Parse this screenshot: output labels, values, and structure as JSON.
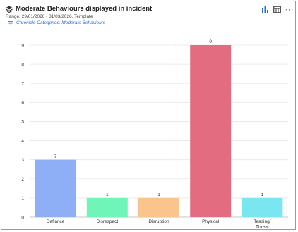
{
  "header": {
    "title": "Moderate Behaviours displayed in incident",
    "range": "Range: 29/01/2026 - 31/03/2026, Template",
    "filter": "Chronicle Categories: Moderate Behaviours"
  },
  "toolbar": {
    "more_label": "···"
  },
  "icons": {
    "title": "layers-icon",
    "filter": "filter-icon",
    "chart": "bar-chart-icon",
    "table": "table-icon"
  },
  "colors": {
    "toolbar_accent": "#2d6fd1",
    "filter_text": "#2a6ad4"
  },
  "chart_data": {
    "type": "bar",
    "categories": [
      "Defiance",
      "Disrespect",
      "Disruption",
      "Physical",
      "Teasing/ Threat"
    ],
    "category_lines": [
      [
        "Defiance"
      ],
      [
        "Disrespect"
      ],
      [
        "Disruption"
      ],
      [
        "Physical"
      ],
      [
        "Teasing/",
        "Threat"
      ]
    ],
    "values": [
      3,
      1,
      1,
      9,
      1
    ],
    "colors": [
      "#8eaef5",
      "#6ff5b8",
      "#fbc48c",
      "#e36c80",
      "#79e6f0"
    ],
    "ylim": [
      0,
      9
    ],
    "yticks": [
      0,
      1,
      2,
      3,
      4,
      5,
      6,
      7,
      8,
      9
    ],
    "grid": true,
    "data_labels": true,
    "title": "",
    "xlabel": "",
    "ylabel": ""
  }
}
